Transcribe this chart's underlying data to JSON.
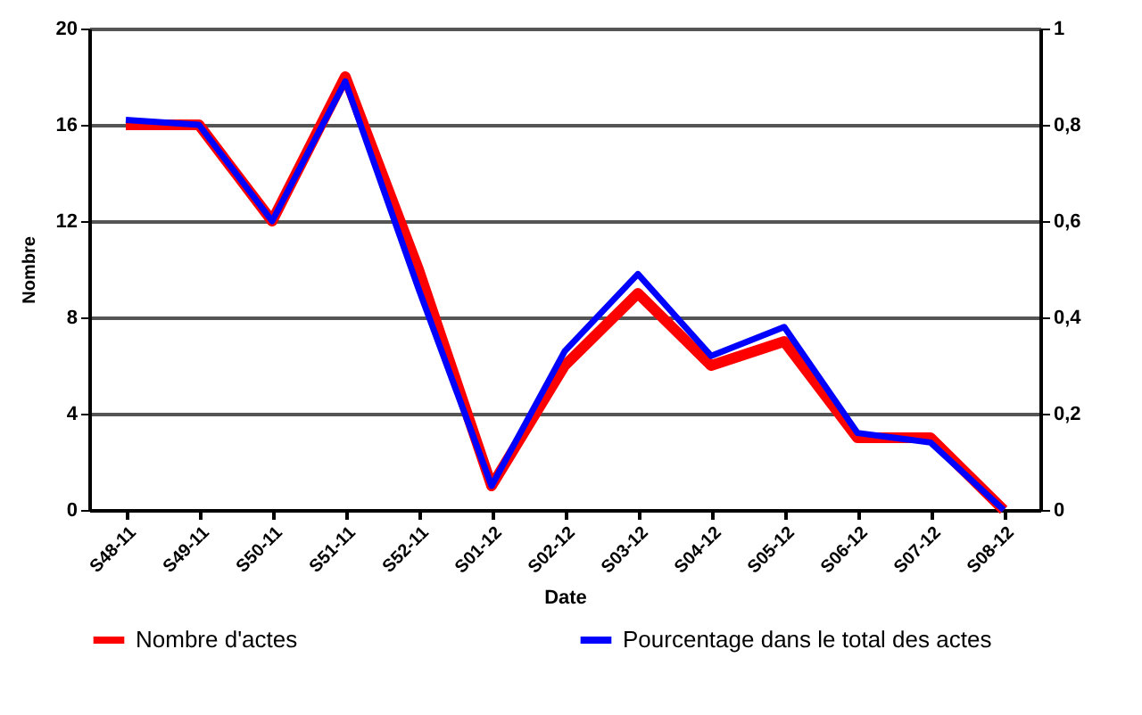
{
  "chart_data": {
    "type": "line",
    "xlabel": "Date",
    "ylabel": "Nombre",
    "categories": [
      "S48-11",
      "S49-11",
      "S50-11",
      "S51-11",
      "S52-11",
      "S01-12",
      "S02-12",
      "S03-12",
      "S04-12",
      "S05-12",
      "S06-12",
      "S07-12",
      "S08-12"
    ],
    "series": [
      {
        "name": "Nombre d'actes",
        "color": "#ff0000",
        "values": [
          16,
          16,
          12,
          18,
          10,
          1,
          6,
          9,
          6,
          7,
          3,
          3,
          0
        ]
      },
      {
        "name": "Pourcentage dans le total des actes",
        "color": "#0000ff",
        "axis": "y2",
        "values": [
          0.81,
          0.8,
          0.6,
          0.89,
          0.46,
          0.05,
          0.33,
          0.49,
          0.32,
          0.38,
          0.16,
          0.14,
          0
        ]
      }
    ],
    "ylim": [
      0,
      20
    ],
    "yticks": [
      0,
      4,
      8,
      12,
      16,
      20
    ],
    "y2lim": [
      0,
      1
    ],
    "y2ticks": [
      {
        "value": 0,
        "label": "0"
      },
      {
        "value": 0.2,
        "label": "0,2"
      },
      {
        "value": 0.4,
        "label": "0,4"
      },
      {
        "value": 0.6,
        "label": "0,6"
      },
      {
        "value": 0.8,
        "label": "0,8"
      },
      {
        "value": 1,
        "label": "1"
      }
    ],
    "grid": "y",
    "legend": "bottom",
    "marker": "none",
    "line_style": "solid"
  }
}
